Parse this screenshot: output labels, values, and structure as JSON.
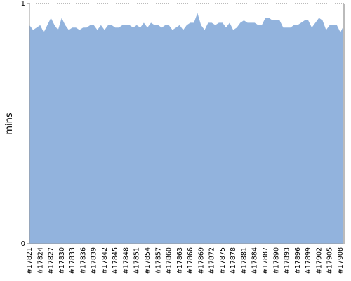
{
  "chart_data": {
    "type": "area",
    "y_label": "mins",
    "categories": [
      "#17821",
      null,
      null,
      "#17824",
      null,
      null,
      "#17827",
      null,
      null,
      "#17830",
      null,
      null,
      "#17833",
      null,
      null,
      "#17836",
      null,
      null,
      "#17839",
      null,
      null,
      "#17842",
      null,
      null,
      "#17845",
      null,
      null,
      "#17848",
      null,
      null,
      "#17851",
      null,
      null,
      "#17854",
      null,
      null,
      "#17857",
      null,
      null,
      "#17860",
      null,
      null,
      "#17863",
      null,
      null,
      "#17866",
      null,
      null,
      "#17869",
      null,
      null,
      "#17872",
      null,
      null,
      "#17875",
      null,
      null,
      "#17878",
      null,
      null,
      "#17881",
      null,
      null,
      "#17884",
      null,
      null,
      "#17887",
      null,
      null,
      "#17890",
      null,
      null,
      "#17893",
      null,
      null,
      "#17896",
      null,
      null,
      "#17899",
      null,
      null,
      "#17902",
      null,
      null,
      "#17905",
      null,
      null,
      "#17908",
      null
    ],
    "values": [
      0.91,
      0.89,
      0.9,
      0.91,
      0.88,
      0.91,
      0.94,
      0.91,
      0.89,
      0.94,
      0.91,
      0.89,
      0.9,
      0.9,
      0.89,
      0.9,
      0.9,
      0.91,
      0.91,
      0.89,
      0.91,
      0.89,
      0.91,
      0.91,
      0.9,
      0.9,
      0.91,
      0.91,
      0.91,
      0.9,
      0.91,
      0.9,
      0.92,
      0.9,
      0.92,
      0.91,
      0.91,
      0.9,
      0.91,
      0.91,
      0.89,
      0.9,
      0.91,
      0.89,
      0.91,
      0.92,
      0.92,
      0.96,
      0.91,
      0.89,
      0.92,
      0.92,
      0.91,
      0.92,
      0.92,
      0.9,
      0.92,
      0.89,
      0.9,
      0.92,
      0.93,
      0.92,
      0.92,
      0.92,
      0.91,
      0.91,
      0.94,
      0.94,
      0.93,
      0.93,
      0.93,
      0.9,
      0.9,
      0.9,
      0.91,
      0.91,
      0.92,
      0.93,
      0.93,
      0.9,
      0.92,
      0.94,
      0.93,
      0.89,
      0.91,
      0.91,
      0.91,
      0.88,
      0.91
    ],
    "color": "#92b3dd",
    "ylim": [
      0,
      1
    ],
    "yticks": [
      0,
      1
    ],
    "grid": true
  }
}
